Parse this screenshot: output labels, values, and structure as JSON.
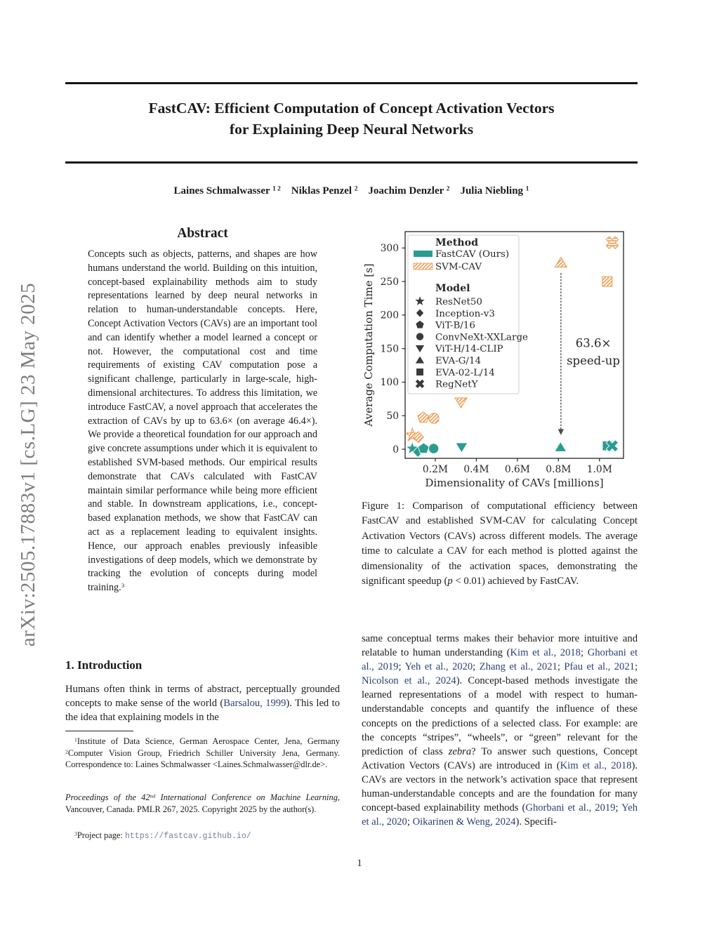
{
  "sidebar": {
    "text": "arXiv:2505.17883v1  [cs.LG]  23 May 2025"
  },
  "header": {
    "title_line1": "FastCAV: Efficient Computation of Concept Activation Vectors",
    "title_line2": "for Explaining Deep Neural Networks",
    "authors": [
      {
        "t": "Laines Schmalwasser "
      },
      {
        "t": "1 2",
        "s": "sup"
      },
      {
        "t": "  "
      },
      {
        "t": "Niklas Penzel "
      },
      {
        "t": "2",
        "s": "sup"
      },
      {
        "t": "  "
      },
      {
        "t": "Joachim Denzler "
      },
      {
        "t": "2",
        "s": "sup"
      },
      {
        "t": "  "
      },
      {
        "t": "Julia Niebling "
      },
      {
        "t": "1",
        "s": "sup"
      }
    ]
  },
  "abstract": {
    "heading": "Abstract",
    "body": [
      {
        "t": "Concepts such as objects, patterns, and shapes are how humans understand the world. Building on this intuition, concept-based explainability methods aim to study representations learned by deep neural networks in relation to human-understandable concepts. Here, Concept Activation Vectors (CAVs) are an important tool and can identify whether a model learned a concept or not. However, the computational cost and time requirements of existing CAV computation pose a significant challenge, particularly in large-scale, high-dimensional architectures. To address this limitation, we introduce FastCAV, a novel approach that accelerates the extraction of CAVs by up to 63.6× (on average 46.4×). We provide a theoretical foundation for our approach and give concrete assumptions under which it is equivalent to established SVM-based methods. Our empirical results demonstrate that CAVs calculated with FastCAV maintain similar performance while being more efficient and stable. In downstream applications, i.e., concept-based explanation methods, we show that FastCAV can act as a replacement leading to equivalent insights. Hence, our approach enables previously infeasible investigations of deep models, which we demonstrate by tracking the evolution of concepts during model training."
      },
      {
        "t": "3",
        "s": "sup"
      }
    ]
  },
  "introduction": {
    "heading": "1. Introduction",
    "paragraph": [
      {
        "t": "Humans often think in terms of abstract, perceptually grounded concepts to make sense of the world ("
      },
      {
        "t": "Barsalou, 1999",
        "s": "cite"
      },
      {
        "t": "). This led to the idea that explaining models in the"
      }
    ]
  },
  "footnotes": {
    "affiliation": [
      {
        "t": "1",
        "s": "sup"
      },
      {
        "t": "Institute of Data Science, German Aerospace Center, Jena, Germany "
      },
      {
        "t": "2",
        "s": "sup"
      },
      {
        "t": "Computer Vision Group, Friedrich Schiller University Jena, Germany. Correspondence to: Laines Schmalwasser <Laines.Schmalwasser@dlr.de>."
      }
    ],
    "proceedings": [
      {
        "t": "Proceedings of the 42",
        "s": "i"
      },
      {
        "t": "nd",
        "s": "isup"
      },
      {
        "t": " International Conference on Machine Learning",
        "s": "i"
      },
      {
        "t": ", Vancouver, Canada. PMLR 267, 2025. Copyright 2025 by the author(s)."
      }
    ],
    "project": [
      {
        "t": "3",
        "s": "sup"
      },
      {
        "t": "Project page: "
      },
      {
        "t": "https://fastcav.github.io/",
        "s": "mono"
      }
    ]
  },
  "figure": {
    "caption": [
      {
        "t": "Figure 1: Comparison of computational efficiency between FastCAV and established SVM-CAV for calculating Concept Activation Vectors (CAVs) across different models. The average time to calculate a CAV for each method is plotted against the dimensionality of the activation spaces, demonstrating the significant speedup ("
      },
      {
        "t": "p",
        "s": "i"
      },
      {
        "t": " < 0.01) achieved by FastCAV."
      }
    ]
  },
  "column_right": {
    "paragraph": [
      {
        "t": "same conceptual terms makes their behavior more intuitive and relatable to human understanding ("
      },
      {
        "t": "Kim et al., 2018",
        "s": "cite"
      },
      {
        "t": "; "
      },
      {
        "t": "Ghorbani et al., 2019",
        "s": "cite"
      },
      {
        "t": "; "
      },
      {
        "t": "Yeh et al., 2020",
        "s": "cite"
      },
      {
        "t": "; "
      },
      {
        "t": "Zhang et al., 2021",
        "s": "cite"
      },
      {
        "t": "; "
      },
      {
        "t": "Pfau et al., 2021",
        "s": "cite"
      },
      {
        "t": "; "
      },
      {
        "t": "Nicolson et al., 2024",
        "s": "cite"
      },
      {
        "t": "). Concept-based methods investigate the learned representations of a model with respect to human-understandable concepts and quantify the influence of these concepts on the predictions of a selected class. For example: are the concepts “stripes”, “wheels”, or “green” relevant for the prediction of class "
      },
      {
        "t": "zebra",
        "s": "i"
      },
      {
        "t": "? To answer such questions, Concept Activation Vectors (CAVs) are introduced in ("
      },
      {
        "t": "Kim et al., 2018",
        "s": "cite"
      },
      {
        "t": "). CAVs are vectors in the network’s activation space that represent human-understandable concepts and are the foundation for many concept-based explainability methods ("
      },
      {
        "t": "Ghorbani et al., 2019",
        "s": "cite"
      },
      {
        "t": "; "
      },
      {
        "t": "Yeh et al., 2020",
        "s": "cite"
      },
      {
        "t": "; "
      },
      {
        "t": "Oikarinen & Weng, 2024",
        "s": "cite"
      },
      {
        "t": "). Specifi-"
      }
    ]
  },
  "page": {
    "number": "1"
  },
  "chart_data": {
    "type": "scatter",
    "xlabel": "Dimensionality of CAVs [millions]",
    "ylabel": "Average Computation Time [s]",
    "xlim": [
      0.053,
      1.117
    ],
    "ylim": [
      -13.6,
      324.4
    ],
    "xticks": {
      "values": [
        0.2,
        0.4,
        0.6,
        0.8,
        1.0
      ],
      "labels": [
        "0.2M",
        "0.4M",
        "0.6M",
        "0.8M",
        "1.0M"
      ]
    },
    "yticks": [
      0,
      50,
      100,
      150,
      200,
      250,
      300
    ],
    "colors": {
      "fastcav": "#2a9d8f",
      "svm": "#eda05d"
    },
    "legend": {
      "position": "upper left",
      "method_header": "Method",
      "model_header": "Model",
      "methods": [
        {
          "name": "FastCAV (Ours)",
          "style": "solid"
        },
        {
          "name": "SVM-CAV",
          "style": "hatched"
        }
      ],
      "models": [
        {
          "name": "ResNet50",
          "marker": "star"
        },
        {
          "name": "Inception-v3",
          "marker": "diamond"
        },
        {
          "name": "ViT-B/16",
          "marker": "pentagon"
        },
        {
          "name": "ConvNeXt-XXLarge",
          "marker": "circle"
        },
        {
          "name": "ViT-H/14-CLIP",
          "marker": "triangle-down"
        },
        {
          "name": "EVA-G/14",
          "marker": "triangle-up"
        },
        {
          "name": "EVA-02-L/14",
          "marker": "square"
        },
        {
          "name": "RegNetY",
          "marker": "x"
        }
      ]
    },
    "series": [
      {
        "name": "SVM-CAV",
        "style": "hatched",
        "points": [
          {
            "model": "ResNet50",
            "marker": "star",
            "x": 0.088,
            "y": 21
          },
          {
            "model": "Inception-v3",
            "marker": "diamond",
            "x": 0.118,
            "y": 18
          },
          {
            "model": "ViT-B/16",
            "marker": "pentagon",
            "x": 0.141,
            "y": 47
          },
          {
            "model": "ConvNeXt-XXLarge",
            "marker": "circle",
            "x": 0.193,
            "y": 46
          },
          {
            "model": "ViT-H/14-CLIP",
            "marker": "triangle-down",
            "x": 0.325,
            "y": 70
          },
          {
            "model": "EVA-G/14",
            "marker": "triangle-up",
            "x": 0.812,
            "y": 278
          },
          {
            "model": "EVA-02-L/14",
            "marker": "square",
            "x": 1.038,
            "y": 250
          },
          {
            "model": "RegNetY",
            "marker": "x",
            "x": 1.062,
            "y": 308
          }
        ]
      },
      {
        "name": "FastCAV (Ours)",
        "style": "solid",
        "points": [
          {
            "model": "ResNet50",
            "marker": "star",
            "x": 0.088,
            "y": 1
          },
          {
            "model": "Inception-v3",
            "marker": "diamond",
            "x": 0.115,
            "y": -4
          },
          {
            "model": "ViT-B/16",
            "marker": "pentagon",
            "x": 0.143,
            "y": 1
          },
          {
            "model": "ConvNeXt-XXLarge",
            "marker": "circle",
            "x": 0.192,
            "y": 1
          },
          {
            "model": "ViT-H/14-CLIP",
            "marker": "triangle-down",
            "x": 0.328,
            "y": 3
          },
          {
            "model": "EVA-G/14",
            "marker": "triangle-up",
            "x": 0.81,
            "y": 3
          },
          {
            "model": "EVA-02-L/14",
            "marker": "square",
            "x": 1.038,
            "y": 5
          },
          {
            "model": "RegNetY",
            "marker": "x",
            "x": 1.062,
            "y": 5
          }
        ]
      }
    ],
    "annotation": {
      "lines": [
        "63.6×",
        "speed-up"
      ],
      "text_x": 0.97,
      "text_y1": 152,
      "text_y2": 126,
      "arrow_x": 0.812,
      "arrow_y_start": 262,
      "arrow_y_end": 21
    }
  }
}
